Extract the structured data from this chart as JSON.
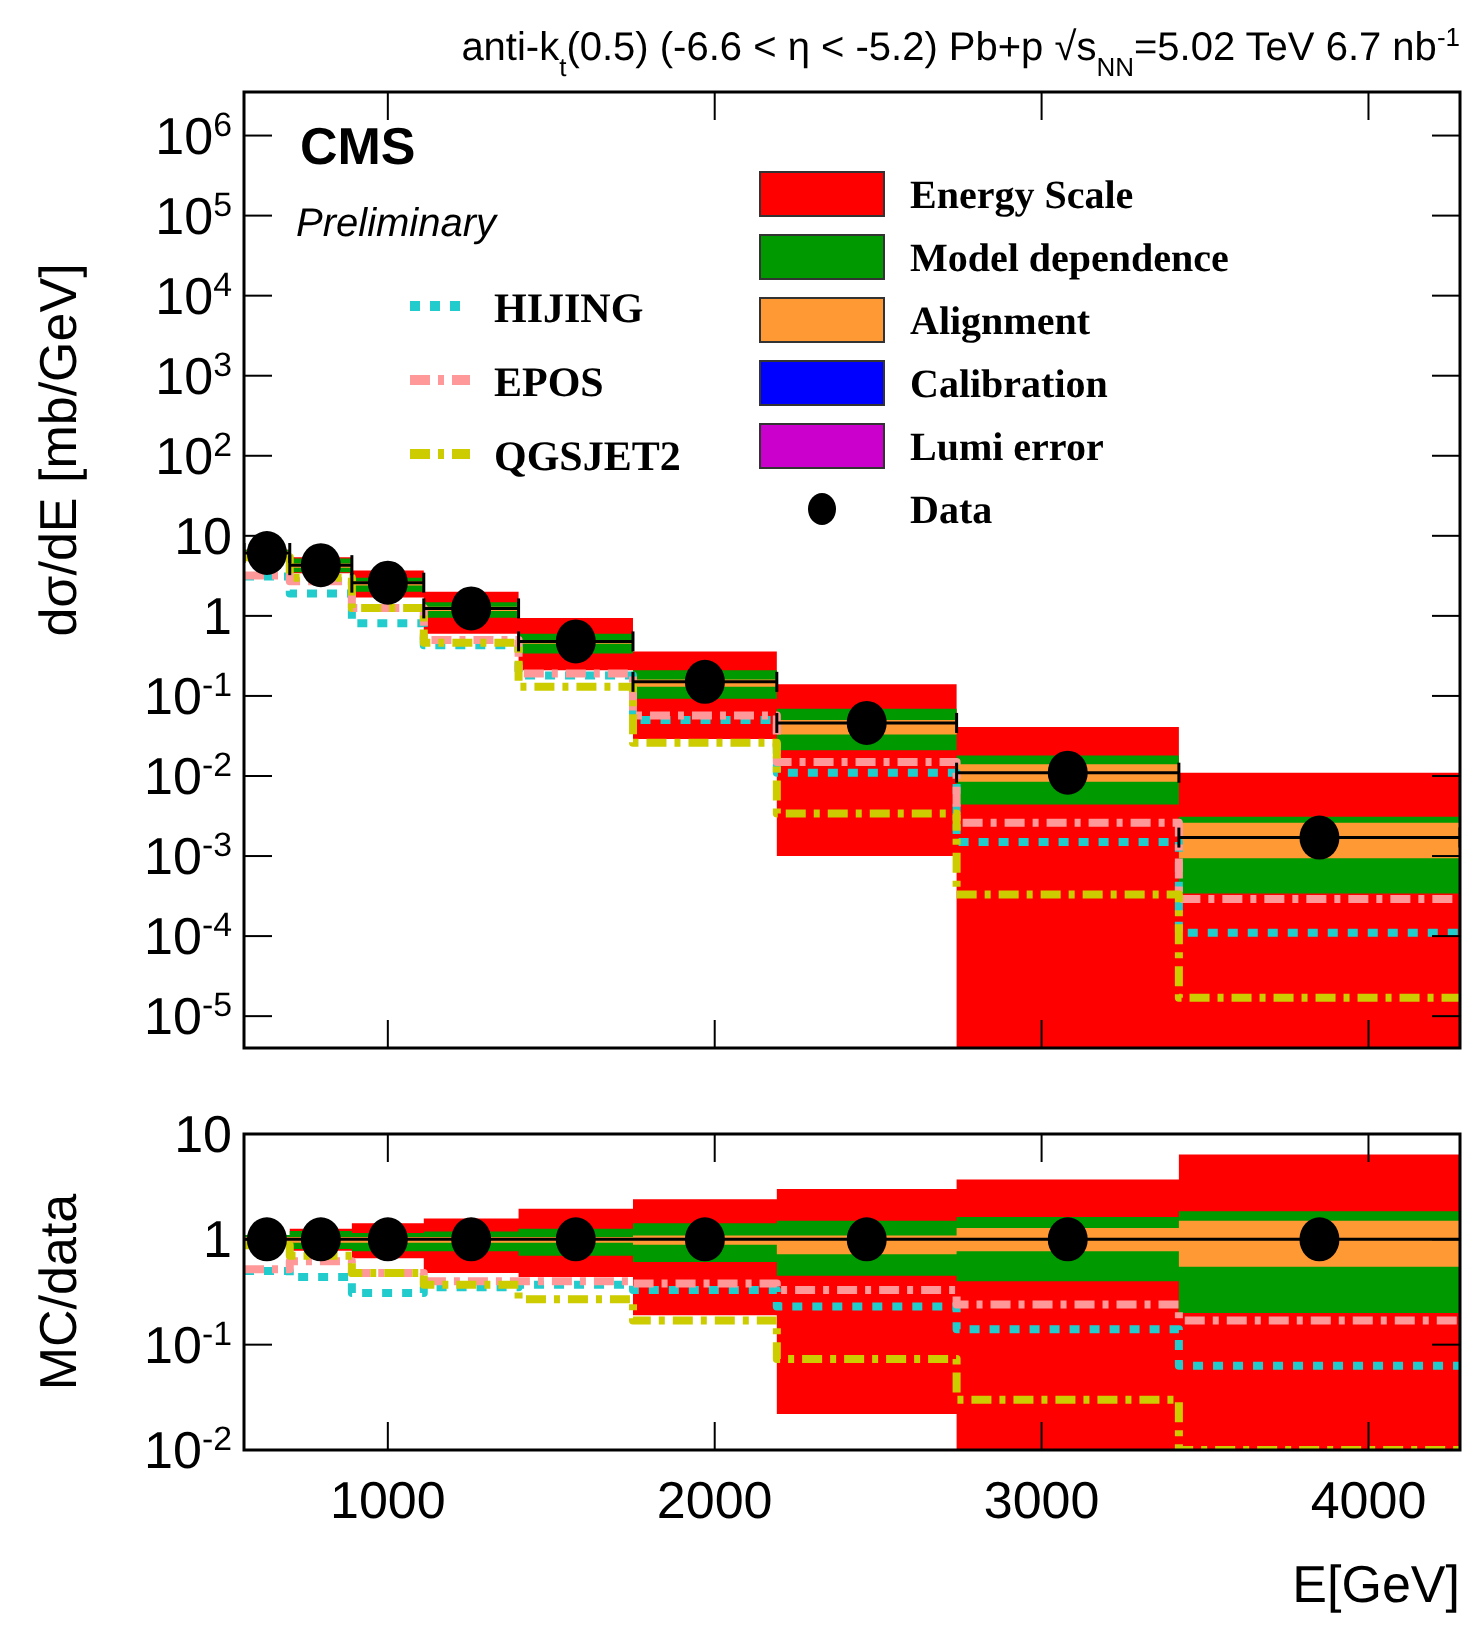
{
  "chart_data": [
    {
      "type": "step",
      "title": "anti-k$_{t}$(0.5)  (-6.6 < η < -5.2)  Pb+p  √s$_{NN}$=5.02 TeV  6.7 nb$^{-1}$",
      "ylabel": "dσ/dE [mb/GeV]",
      "annotations": [
        "CMS",
        "Preliminary"
      ],
      "legend": "top right",
      "log": true,
      "tick_labels": "y",
      "x": [
        560,
        700,
        890,
        1110,
        1400,
        1750,
        2190,
        2740,
        3420,
        4280
      ],
      "xlim": [
        560,
        4280
      ],
      "ylim": [
        4e-06,
        3500000
      ],
      "xticks": [
        {
          "value": 1000,
          "label": null
        },
        {
          "value": 2000,
          "label": null
        },
        {
          "value": 3000,
          "label": null
        },
        {
          "value": 4000,
          "label": null
        }
      ],
      "yticks": [
        {
          "value": 1e-05,
          "label": "10$^{-5}$"
        },
        {
          "value": 0.0001,
          "label": "10$^{-4}$"
        },
        {
          "value": 0.001,
          "label": "10$^{-3}$"
        },
        {
          "value": 0.01,
          "label": "10$^{-2}$"
        },
        {
          "value": 0.1,
          "label": "10$^{-1}$"
        },
        {
          "value": 1,
          "label": "1"
        },
        {
          "value": 10,
          "label": "10"
        },
        {
          "value": 100,
          "label": "10$^{2}$"
        },
        {
          "value": 1000,
          "label": "10$^{3}$"
        },
        {
          "value": 10000,
          "label": "10$^{4}$"
        },
        {
          "value": 100000,
          "label": "10$^{5}$"
        },
        {
          "value": 1000000,
          "label": "10$^{6}$"
        }
      ],
      "series": [
        {
          "name": "Energy Scale",
          "type": "step",
          "color": "#ff0000",
          "values": [
            null,
            null,
            null,
            null,
            null,
            null,
            null,
            null,
            null,
            null
          ],
          "upper": [
            6.7,
            5.4,
            3.7,
            2.0,
            0.94,
            0.36,
            0.14,
            0.041,
            0.011,
            0.011
          ],
          "lower": [
            5.5,
            3.4,
            1.7,
            0.6,
            0.21,
            0.029,
            0.001,
            4e-06,
            4e-06,
            4e-06
          ]
        },
        {
          "name": "Model dependence",
          "type": "step",
          "color": "#009900",
          "values": [
            null,
            null,
            null,
            null,
            null,
            null,
            null,
            null,
            null,
            null
          ],
          "upper": [
            6.7,
            5.2,
            3.0,
            1.48,
            0.6,
            0.21,
            0.069,
            0.018,
            0.0031,
            0.0031
          ],
          "lower": [
            5.4,
            3.5,
            2.0,
            0.95,
            0.34,
            0.092,
            0.021,
            0.0044,
            0.00034,
            0.00034
          ]
        },
        {
          "name": "Alignment",
          "type": "step",
          "color": "#ff9933",
          "values": [
            null,
            null,
            null,
            null,
            null,
            null,
            null,
            null,
            null,
            null
          ],
          "upper": [
            6.4,
            4.5,
            2.7,
            1.3,
            0.5,
            0.16,
            0.05,
            0.014,
            0.0026,
            0.0026
          ],
          "lower": [
            5.7,
            4.0,
            2.4,
            1.15,
            0.45,
            0.13,
            0.033,
            0.0085,
            0.00094,
            0.00094
          ]
        },
        {
          "name": "Calibration",
          "type": "step",
          "color": "#0000ff",
          "values": [
            null,
            null,
            null,
            null,
            null,
            null,
            null,
            null,
            null,
            null
          ]
        },
        {
          "name": "Lumi error",
          "type": "step",
          "color": "#cc00cc",
          "values": [
            null,
            null,
            null,
            null,
            null,
            null,
            null,
            null,
            null,
            null
          ]
        },
        {
          "name": "HIJING",
          "type": "step",
          "color": "#22cccc",
          "line_style": "dotted",
          "values": [
            3.1,
            1.9,
            0.81,
            0.43,
            0.18,
            0.05,
            0.011,
            0.0015,
            0.00011,
            0.00011
          ]
        },
        {
          "name": "EPOS",
          "type": "step",
          "color": "#ff9999",
          "line_style": "dashed",
          "values": [
            3.2,
            2.7,
            1.25,
            0.5,
            0.19,
            0.057,
            0.015,
            0.0026,
            0.00029,
            0.00029
          ]
        },
        {
          "name": "QGSJET2",
          "type": "step",
          "color": "#cccc00",
          "line_style": "dashed",
          "values": [
            5.4,
            3.0,
            1.25,
            0.46,
            0.13,
            0.026,
            0.0034,
            0.00033,
            1.7e-05,
            1.7e-05
          ]
        },
        {
          "name": "Data",
          "type": "scatter",
          "color": "#000000",
          "marker": "circle",
          "x": [
            630,
            795,
            1000,
            1255,
            1575,
            1970,
            2465,
            3080,
            3850
          ],
          "xerrors": [
            70,
            95,
            110,
            145,
            175,
            220,
            275,
            340,
            430
          ],
          "values": [
            6.1,
            4.3,
            2.6,
            1.24,
            0.48,
            0.15,
            0.046,
            0.011,
            0.0017
          ]
        }
      ]
    },
    {
      "type": "step",
      "xlabel": "E[GeV]",
      "ylabel": "MC/data",
      "log": true,
      "legend": false,
      "ref_lines": [
        {
          "axis": "y",
          "value": 1,
          "color": "#000000"
        }
      ],
      "x": [
        560,
        700,
        890,
        1110,
        1400,
        1750,
        2190,
        2740,
        3420,
        4280
      ],
      "xlim": [
        560,
        4280
      ],
      "ylim": [
        0.01,
        10
      ],
      "xticks": [
        1000,
        2000,
        3000,
        4000
      ],
      "yticks": [
        {
          "value": 0.01,
          "label": "10$^{-2}$"
        },
        {
          "value": 0.1,
          "label": "10$^{-1}$"
        },
        {
          "value": 1,
          "label": "1"
        },
        {
          "value": 10,
          "label": "10"
        }
      ],
      "series": [
        {
          "type": "step",
          "color": "#ff0000",
          "values": [
            null,
            null,
            null,
            null,
            null,
            null,
            null,
            null,
            null,
            null
          ],
          "upper": [
            1.1,
            1.26,
            1.42,
            1.58,
            1.95,
            2.4,
            3.0,
            3.7,
            6.4,
            6.4
          ],
          "lower": [
            0.9,
            0.78,
            0.66,
            0.48,
            0.44,
            0.19,
            0.022,
            0.01,
            0.01,
            0.01
          ]
        },
        {
          "type": "step",
          "color": "#009900",
          "values": [
            null,
            null,
            null,
            null,
            null,
            null,
            null,
            null,
            null,
            null
          ],
          "upper": [
            1.1,
            1.2,
            1.15,
            1.19,
            1.26,
            1.42,
            1.5,
            1.63,
            1.85,
            1.85
          ],
          "lower": [
            0.88,
            0.81,
            0.77,
            0.77,
            0.7,
            0.61,
            0.45,
            0.4,
            0.2,
            0.2
          ]
        },
        {
          "type": "step",
          "color": "#ff9933",
          "values": [
            null,
            null,
            null,
            null,
            null,
            null,
            null,
            null,
            null,
            null
          ],
          "upper": [
            1.05,
            1.05,
            1.05,
            1.05,
            1.05,
            1.09,
            1.09,
            1.28,
            1.5,
            1.5
          ],
          "lower": [
            0.93,
            0.93,
            0.93,
            0.93,
            0.93,
            0.89,
            0.72,
            0.77,
            0.55,
            0.55
          ]
        },
        {
          "type": "step",
          "color": "#22cccc",
          "line_style": "dotted",
          "values": [
            0.5,
            0.44,
            0.31,
            0.35,
            0.37,
            0.33,
            0.23,
            0.14,
            0.063,
            0.063
          ]
        },
        {
          "type": "step",
          "color": "#ff9999",
          "line_style": "dashed",
          "values": [
            0.52,
            0.62,
            0.48,
            0.4,
            0.4,
            0.38,
            0.33,
            0.24,
            0.17,
            0.17
          ]
        },
        {
          "type": "step",
          "color": "#cccc00",
          "line_style": "dashed",
          "values": [
            0.88,
            0.7,
            0.48,
            0.37,
            0.27,
            0.17,
            0.073,
            0.03,
            0.01,
            0.01
          ]
        },
        {
          "type": "scatter",
          "color": "#000000",
          "marker": "circle",
          "x": [
            630,
            795,
            1000,
            1255,
            1575,
            1970,
            2465,
            3080,
            3850
          ],
          "values": [
            1,
            1,
            1,
            1,
            1,
            1,
            1,
            1,
            1
          ]
        }
      ]
    }
  ]
}
